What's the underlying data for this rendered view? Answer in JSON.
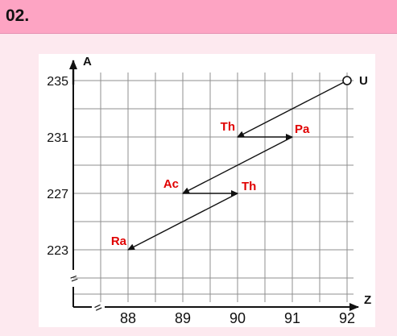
{
  "header": {
    "title": "02."
  },
  "diagram": {
    "axis_y_label": "A",
    "axis_x_label": "Z",
    "y_ticks": [
      "235",
      "231",
      "227",
      "223"
    ],
    "x_ticks": [
      "88",
      "89",
      "90",
      "91",
      "92"
    ],
    "axis_break_mark": "=",
    "colors": {
      "background": "#fde9ef",
      "header": "#fda4c3",
      "grid": "#8f8f8f",
      "axis": "#111111",
      "element_labels": "#e00000"
    },
    "nuclides": [
      {
        "symbol": "U",
        "z": 92,
        "a": 235
      },
      {
        "symbol": "Th",
        "z": 90,
        "a": 231
      },
      {
        "symbol": "Pa",
        "z": 91,
        "a": 231
      },
      {
        "symbol": "Ac",
        "z": 89,
        "a": 227
      },
      {
        "symbol": "Th",
        "z": 90,
        "a": 227
      },
      {
        "symbol": "Ra",
        "z": 88,
        "a": 223
      }
    ],
    "decays": [
      {
        "from": [
          92,
          235
        ],
        "to": [
          90,
          231
        ]
      },
      {
        "from": [
          90,
          231
        ],
        "to": [
          91,
          231
        ]
      },
      {
        "from": [
          91,
          231
        ],
        "to": [
          89,
          227
        ]
      },
      {
        "from": [
          89,
          227
        ],
        "to": [
          90,
          227
        ]
      },
      {
        "from": [
          90,
          227
        ],
        "to": [
          88,
          223
        ]
      }
    ]
  }
}
